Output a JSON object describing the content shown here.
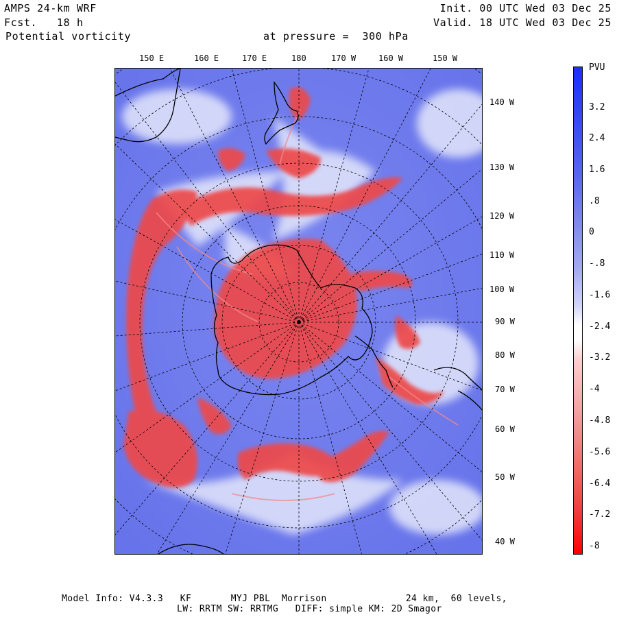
{
  "header": {
    "model": "AMPS 24-km WRF",
    "forecast": "Fcst.   18 h",
    "field": "Potential vorticity",
    "level": "at pressure =  300 hPa",
    "init": "Init. 00 UTC Wed 03 Dec 25",
    "valid": "Valid. 18 UTC Wed 03 Dec 25"
  },
  "map": {
    "top_lon_labels": [
      "150 E",
      "160 E",
      "170 E",
      "180",
      "170 W",
      "160 W",
      "150 W"
    ],
    "right_lon_labels": [
      "140 W",
      "130 W",
      "120 W",
      "110 W",
      "100 W",
      "90 W",
      "80 W",
      "70 W",
      "60 W",
      "50 W",
      "40 W"
    ]
  },
  "colorbar": {
    "unit": "PVU",
    "ticks": [
      "3.2",
      "2.4",
      "1.6",
      ".8",
      "0",
      "-.8",
      "-1.6",
      "-2.4",
      "-3.2",
      "-4",
      "-4.8",
      "-5.6",
      "-6.4",
      "-7.2",
      "-8"
    ],
    "colors": {
      "positive": "#1f2cff",
      "zero": "#ffffff",
      "negative": "#ff0000"
    }
  },
  "footer": {
    "line1": "Model Info: V4.3.3   KF       MYJ PBL  Morrison              24 km,  60 levels,",
    "line2": "LW: RRTM SW: RRTMG   DIFF: simple KM: 2D Smagor"
  }
}
